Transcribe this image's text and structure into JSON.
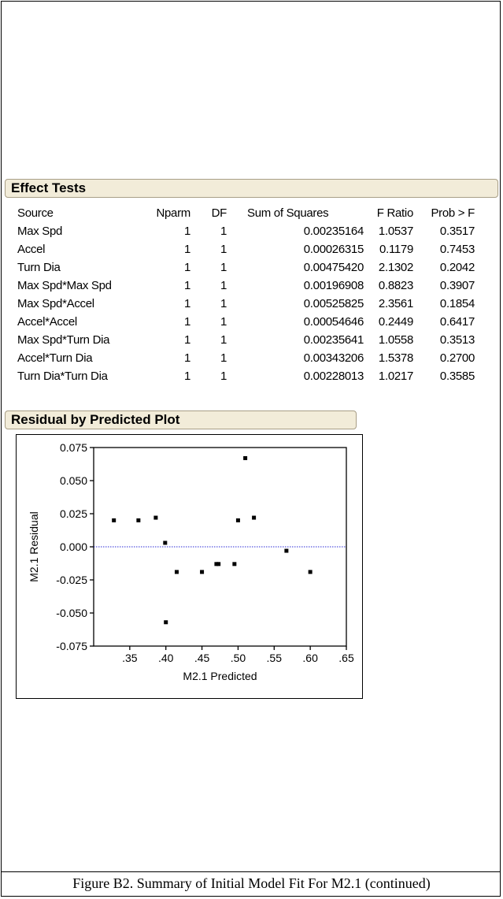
{
  "effect_tests": {
    "title": "Effect Tests",
    "columns": [
      "Source",
      "Nparm",
      "DF",
      "Sum of Squares",
      "F Ratio",
      "Prob > F"
    ],
    "rows": [
      [
        "Max Spd",
        "1",
        "1",
        "0.00235164",
        "1.0537",
        "0.3517"
      ],
      [
        "Accel",
        "1",
        "1",
        "0.00026315",
        "0.1179",
        "0.7453"
      ],
      [
        "Turn Dia",
        "1",
        "1",
        "0.00475420",
        "2.1302",
        "0.2042"
      ],
      [
        "Max Spd*Max Spd",
        "1",
        "1",
        "0.00196908",
        "0.8823",
        "0.3907"
      ],
      [
        "Max Spd*Accel",
        "1",
        "1",
        "0.00525825",
        "2.3561",
        "0.1854"
      ],
      [
        "Accel*Accel",
        "1",
        "1",
        "0.00054646",
        "0.2449",
        "0.6417"
      ],
      [
        "Max Spd*Turn Dia",
        "1",
        "1",
        "0.00235641",
        "1.0558",
        "0.3513"
      ],
      [
        "Accel*Turn Dia",
        "1",
        "1",
        "0.00343206",
        "1.5378",
        "0.2700"
      ],
      [
        "Turn Dia*Turn Dia",
        "1",
        "1",
        "0.00228013",
        "1.0217",
        "0.3585"
      ]
    ]
  },
  "residual_plot": {
    "title": "Residual by Predicted Plot"
  },
  "chart_data": {
    "type": "scatter",
    "title": "",
    "xlabel": "M2.1 Predicted",
    "ylabel": "M2.1 Residual",
    "xlim": [
      0.3,
      0.65
    ],
    "ylim": [
      -0.075,
      0.075
    ],
    "xticks": [
      0.35,
      0.4,
      0.45,
      0.5,
      0.55,
      0.6,
      0.65
    ],
    "xtick_labels": [
      ".35",
      ".40",
      ".45",
      ".50",
      ".55",
      ".60",
      ".65"
    ],
    "yticks": [
      0.075,
      0.05,
      0.025,
      0.0,
      -0.025,
      -0.05,
      -0.075
    ],
    "ytick_labels": [
      "0.075",
      "0.050",
      "0.025",
      "0.000",
      "-0.025",
      "-0.050",
      "-0.075"
    ],
    "reference_line": {
      "y": 0.0,
      "color": "#2b2bd6",
      "style": "dotted"
    },
    "marker_color": "#000000",
    "points": [
      {
        "x": 0.328,
        "y": 0.02
      },
      {
        "x": 0.362,
        "y": 0.02
      },
      {
        "x": 0.386,
        "y": 0.022
      },
      {
        "x": 0.399,
        "y": 0.003
      },
      {
        "x": 0.4,
        "y": -0.057
      },
      {
        "x": 0.415,
        "y": -0.019
      },
      {
        "x": 0.45,
        "y": -0.019
      },
      {
        "x": 0.47,
        "y": -0.013
      },
      {
        "x": 0.473,
        "y": -0.013
      },
      {
        "x": 0.495,
        "y": -0.013
      },
      {
        "x": 0.5,
        "y": 0.02
      },
      {
        "x": 0.51,
        "y": 0.067
      },
      {
        "x": 0.522,
        "y": 0.022
      },
      {
        "x": 0.567,
        "y": -0.003
      },
      {
        "x": 0.6,
        "y": -0.019
      }
    ]
  },
  "caption": "Figure B2.  Summary of Initial Model Fit For M2.1 (continued)"
}
